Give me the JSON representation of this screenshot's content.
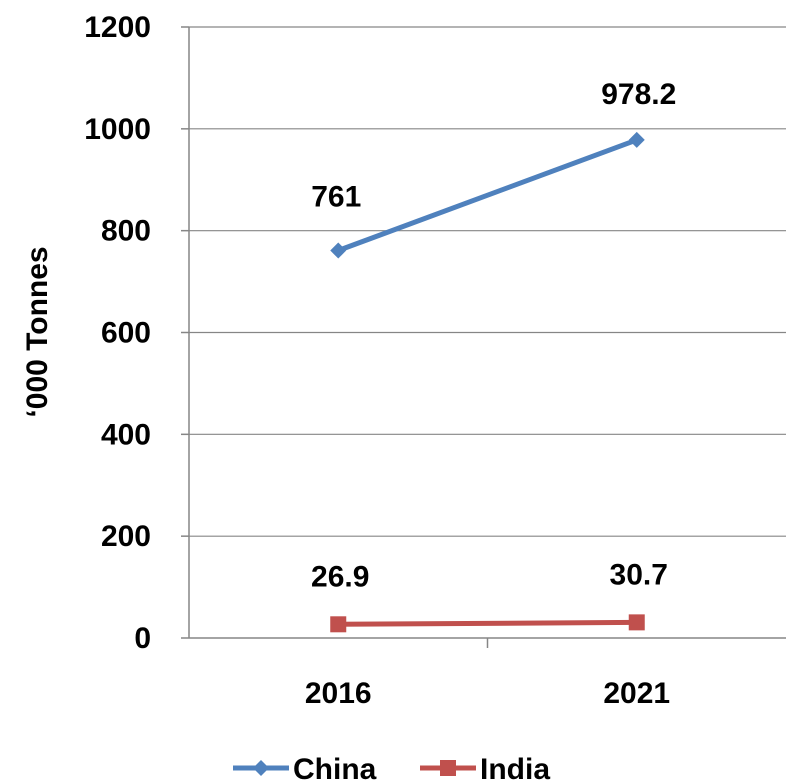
{
  "chart_data": {
    "type": "line",
    "categories": [
      "2016",
      "2021"
    ],
    "series": [
      {
        "name": "China",
        "values": [
          761,
          978.2
        ],
        "color": "#4F81BD",
        "marker": "diamond",
        "labels": [
          "761",
          "978.2"
        ]
      },
      {
        "name": "India",
        "values": [
          26.9,
          30.7
        ],
        "color": "#C0504D",
        "marker": "square",
        "labels": [
          "26.9",
          "30.7"
        ]
      }
    ],
    "ylabel": "‘000 Tonnes",
    "ylim": [
      0,
      1200
    ],
    "yticks": [
      "0",
      "200",
      "400",
      "600",
      "800",
      "1000",
      "1200"
    ],
    "grid": true,
    "legend_position": "bottom"
  }
}
